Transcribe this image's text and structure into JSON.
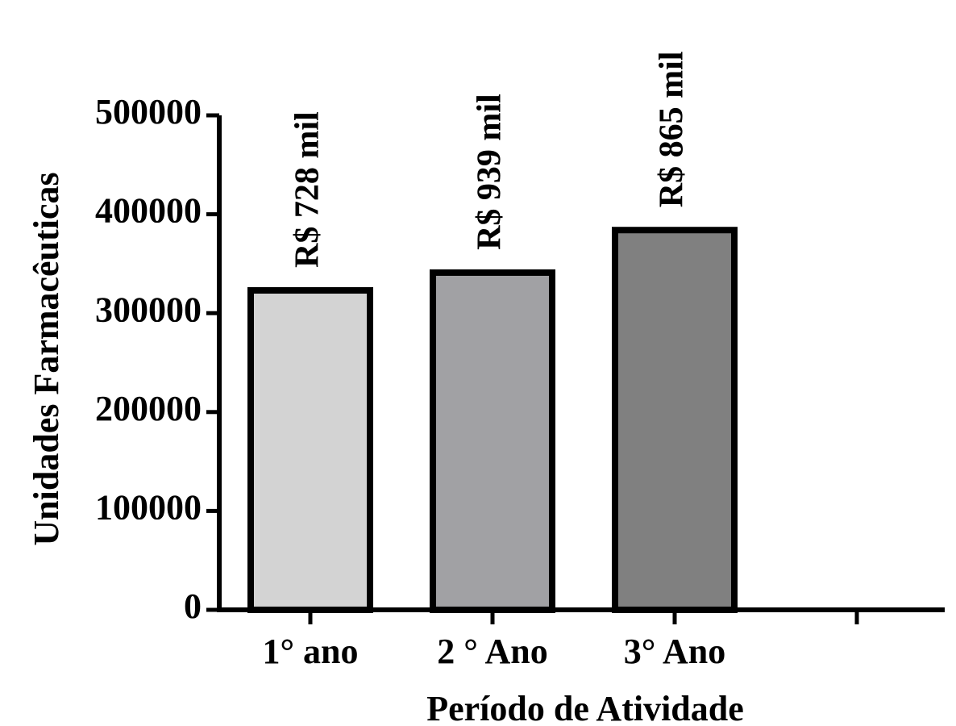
{
  "chart_data": {
    "type": "bar",
    "xlabel": "Período de Atividade",
    "ylabel": "Unidades Farmacêuticas",
    "categories": [
      "1° ano",
      "2 ° Ano",
      "3° Ano",
      ""
    ],
    "values": [
      323000,
      341000,
      384000,
      null
    ],
    "bar_labels": [
      "R$ 728 mil",
      "R$ 939 mil",
      "R$ 865 mil",
      ""
    ],
    "bar_colors": [
      "#d3d3d3",
      "#a1a1a4",
      "#808080"
    ],
    "ylim": [
      0,
      500000
    ],
    "yticks": [
      0,
      100000,
      200000,
      300000,
      400000,
      500000
    ],
    "ytick_labels": [
      "0",
      "100000",
      "200000",
      "300000",
      "400000",
      "500000"
    ],
    "grid": false,
    "legend": "none"
  }
}
